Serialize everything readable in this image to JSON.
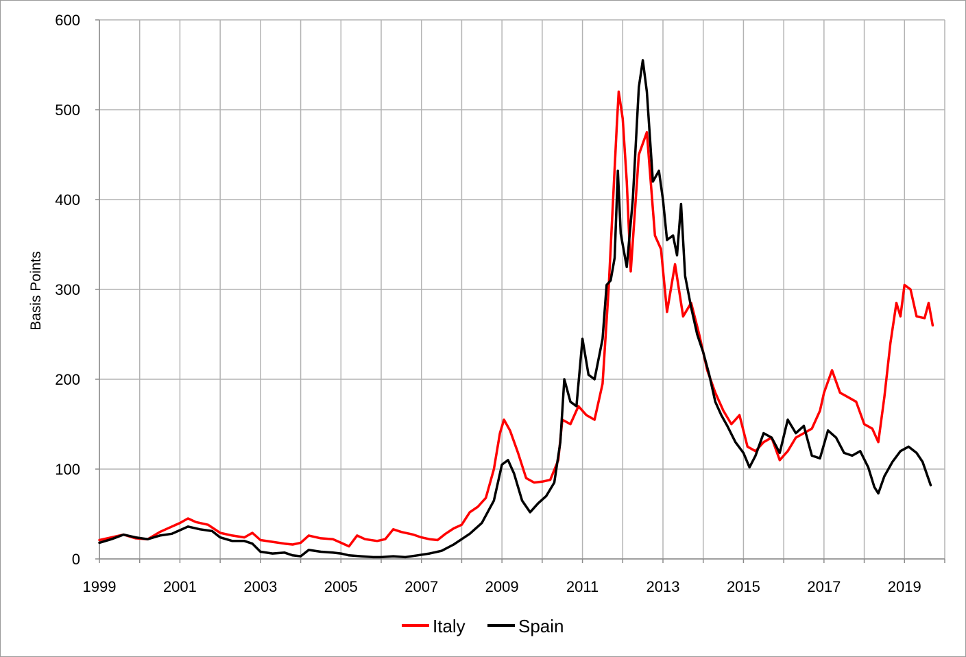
{
  "chart_data": {
    "type": "line",
    "title": "",
    "xlabel": "",
    "ylabel": "Basis Points",
    "xlim": [
      1999,
      2020
    ],
    "ylim": [
      0,
      600
    ],
    "x_ticks": [
      "1999",
      "2001",
      "2003",
      "2005",
      "2007",
      "2009",
      "2011",
      "2013",
      "2015",
      "2017",
      "2019"
    ],
    "y_ticks": [
      "0",
      "100",
      "200",
      "300",
      "400",
      "500",
      "600"
    ],
    "grid": true,
    "legend_position": "bottom",
    "series": [
      {
        "name": "Italy",
        "color": "#ff0000",
        "points": [
          [
            1999.0,
            21
          ],
          [
            1999.3,
            24
          ],
          [
            1999.6,
            27
          ],
          [
            1999.9,
            23
          ],
          [
            2000.2,
            22
          ],
          [
            2000.5,
            30
          ],
          [
            2000.8,
            36
          ],
          [
            2001.0,
            40
          ],
          [
            2001.2,
            45
          ],
          [
            2001.4,
            41
          ],
          [
            2001.7,
            38
          ],
          [
            2002.0,
            29
          ],
          [
            2002.3,
            26
          ],
          [
            2002.6,
            24
          ],
          [
            2002.8,
            29
          ],
          [
            2003.0,
            21
          ],
          [
            2003.3,
            19
          ],
          [
            2003.6,
            17
          ],
          [
            2003.8,
            16
          ],
          [
            2004.0,
            18
          ],
          [
            2004.2,
            26
          ],
          [
            2004.5,
            23
          ],
          [
            2004.8,
            22
          ],
          [
            2005.0,
            18
          ],
          [
            2005.2,
            14
          ],
          [
            2005.4,
            26
          ],
          [
            2005.6,
            22
          ],
          [
            2005.9,
            20
          ],
          [
            2006.1,
            22
          ],
          [
            2006.3,
            33
          ],
          [
            2006.5,
            30
          ],
          [
            2006.8,
            27
          ],
          [
            2007.0,
            24
          ],
          [
            2007.2,
            22
          ],
          [
            2007.4,
            21
          ],
          [
            2007.6,
            28
          ],
          [
            2007.8,
            34
          ],
          [
            2008.0,
            38
          ],
          [
            2008.2,
            52
          ],
          [
            2008.4,
            58
          ],
          [
            2008.6,
            68
          ],
          [
            2008.8,
            100
          ],
          [
            2008.95,
            140
          ],
          [
            2009.05,
            155
          ],
          [
            2009.2,
            143
          ],
          [
            2009.4,
            118
          ],
          [
            2009.6,
            90
          ],
          [
            2009.8,
            85
          ],
          [
            2010.0,
            86
          ],
          [
            2010.2,
            88
          ],
          [
            2010.4,
            110
          ],
          [
            2010.5,
            155
          ],
          [
            2010.7,
            150
          ],
          [
            2010.9,
            170
          ],
          [
            2011.1,
            160
          ],
          [
            2011.3,
            155
          ],
          [
            2011.5,
            195
          ],
          [
            2011.65,
            300
          ],
          [
            2011.75,
            390
          ],
          [
            2011.85,
            480
          ],
          [
            2011.9,
            520
          ],
          [
            2012.0,
            490
          ],
          [
            2012.1,
            420
          ],
          [
            2012.2,
            320
          ],
          [
            2012.4,
            450
          ],
          [
            2012.6,
            475
          ],
          [
            2012.8,
            360
          ],
          [
            2012.95,
            345
          ],
          [
            2013.1,
            275
          ],
          [
            2013.3,
            328
          ],
          [
            2013.5,
            270
          ],
          [
            2013.7,
            285
          ],
          [
            2013.9,
            250
          ],
          [
            2014.1,
            210
          ],
          [
            2014.3,
            185
          ],
          [
            2014.5,
            165
          ],
          [
            2014.7,
            150
          ],
          [
            2014.9,
            160
          ],
          [
            2015.1,
            125
          ],
          [
            2015.3,
            120
          ],
          [
            2015.5,
            130
          ],
          [
            2015.7,
            135
          ],
          [
            2015.9,
            110
          ],
          [
            2016.1,
            120
          ],
          [
            2016.3,
            135
          ],
          [
            2016.5,
            140
          ],
          [
            2016.7,
            145
          ],
          [
            2016.9,
            165
          ],
          [
            2017.0,
            185
          ],
          [
            2017.2,
            210
          ],
          [
            2017.4,
            185
          ],
          [
            2017.6,
            180
          ],
          [
            2017.8,
            175
          ],
          [
            2018.0,
            150
          ],
          [
            2018.2,
            145
          ],
          [
            2018.35,
            130
          ],
          [
            2018.5,
            180
          ],
          [
            2018.65,
            240
          ],
          [
            2018.8,
            285
          ],
          [
            2018.9,
            270
          ],
          [
            2019.0,
            305
          ],
          [
            2019.15,
            300
          ],
          [
            2019.3,
            270
          ],
          [
            2019.5,
            268
          ],
          [
            2019.6,
            285
          ],
          [
            2019.7,
            260
          ]
        ]
      },
      {
        "name": "Spain",
        "color": "#000000",
        "points": [
          [
            1999.0,
            18
          ],
          [
            1999.3,
            22
          ],
          [
            1999.6,
            27
          ],
          [
            1999.9,
            24
          ],
          [
            2000.2,
            22
          ],
          [
            2000.5,
            26
          ],
          [
            2000.8,
            28
          ],
          [
            2001.0,
            32
          ],
          [
            2001.2,
            36
          ],
          [
            2001.5,
            33
          ],
          [
            2001.8,
            31
          ],
          [
            2002.0,
            24
          ],
          [
            2002.3,
            20
          ],
          [
            2002.6,
            20
          ],
          [
            2002.8,
            17
          ],
          [
            2003.0,
            8
          ],
          [
            2003.3,
            6
          ],
          [
            2003.6,
            7
          ],
          [
            2003.8,
            4
          ],
          [
            2004.0,
            3
          ],
          [
            2004.2,
            10
          ],
          [
            2004.5,
            8
          ],
          [
            2004.8,
            7
          ],
          [
            2005.0,
            6
          ],
          [
            2005.2,
            4
          ],
          [
            2005.5,
            3
          ],
          [
            2005.8,
            2
          ],
          [
            2006.0,
            2
          ],
          [
            2006.3,
            3
          ],
          [
            2006.6,
            2
          ],
          [
            2006.9,
            4
          ],
          [
            2007.2,
            6
          ],
          [
            2007.5,
            9
          ],
          [
            2007.8,
            16
          ],
          [
            2008.0,
            22
          ],
          [
            2008.2,
            28
          ],
          [
            2008.5,
            40
          ],
          [
            2008.8,
            65
          ],
          [
            2009.0,
            105
          ],
          [
            2009.15,
            110
          ],
          [
            2009.3,
            95
          ],
          [
            2009.5,
            65
          ],
          [
            2009.7,
            52
          ],
          [
            2009.9,
            62
          ],
          [
            2010.1,
            70
          ],
          [
            2010.3,
            85
          ],
          [
            2010.45,
            130
          ],
          [
            2010.55,
            200
          ],
          [
            2010.7,
            175
          ],
          [
            2010.85,
            170
          ],
          [
            2011.0,
            245
          ],
          [
            2011.15,
            205
          ],
          [
            2011.3,
            200
          ],
          [
            2011.5,
            245
          ],
          [
            2011.6,
            305
          ],
          [
            2011.7,
            310
          ],
          [
            2011.8,
            335
          ],
          [
            2011.88,
            432
          ],
          [
            2011.95,
            362
          ],
          [
            2012.1,
            325
          ],
          [
            2012.25,
            400
          ],
          [
            2012.4,
            525
          ],
          [
            2012.5,
            555
          ],
          [
            2012.6,
            520
          ],
          [
            2012.75,
            420
          ],
          [
            2012.9,
            432
          ],
          [
            2013.0,
            400
          ],
          [
            2013.1,
            355
          ],
          [
            2013.25,
            360
          ],
          [
            2013.35,
            338
          ],
          [
            2013.45,
            395
          ],
          [
            2013.55,
            315
          ],
          [
            2013.7,
            280
          ],
          [
            2013.85,
            250
          ],
          [
            2014.0,
            230
          ],
          [
            2014.15,
            205
          ],
          [
            2014.3,
            175
          ],
          [
            2014.45,
            160
          ],
          [
            2014.6,
            148
          ],
          [
            2014.8,
            130
          ],
          [
            2015.0,
            118
          ],
          [
            2015.15,
            102
          ],
          [
            2015.3,
            115
          ],
          [
            2015.5,
            140
          ],
          [
            2015.7,
            135
          ],
          [
            2015.9,
            118
          ],
          [
            2016.1,
            155
          ],
          [
            2016.3,
            140
          ],
          [
            2016.5,
            148
          ],
          [
            2016.7,
            115
          ],
          [
            2016.9,
            112
          ],
          [
            2017.1,
            143
          ],
          [
            2017.3,
            135
          ],
          [
            2017.5,
            118
          ],
          [
            2017.7,
            115
          ],
          [
            2017.9,
            120
          ],
          [
            2018.1,
            102
          ],
          [
            2018.25,
            80
          ],
          [
            2018.35,
            73
          ],
          [
            2018.5,
            92
          ],
          [
            2018.7,
            108
          ],
          [
            2018.9,
            120
          ],
          [
            2019.1,
            125
          ],
          [
            2019.3,
            118
          ],
          [
            2019.45,
            108
          ],
          [
            2019.55,
            95
          ],
          [
            2019.65,
            82
          ]
        ]
      }
    ]
  }
}
